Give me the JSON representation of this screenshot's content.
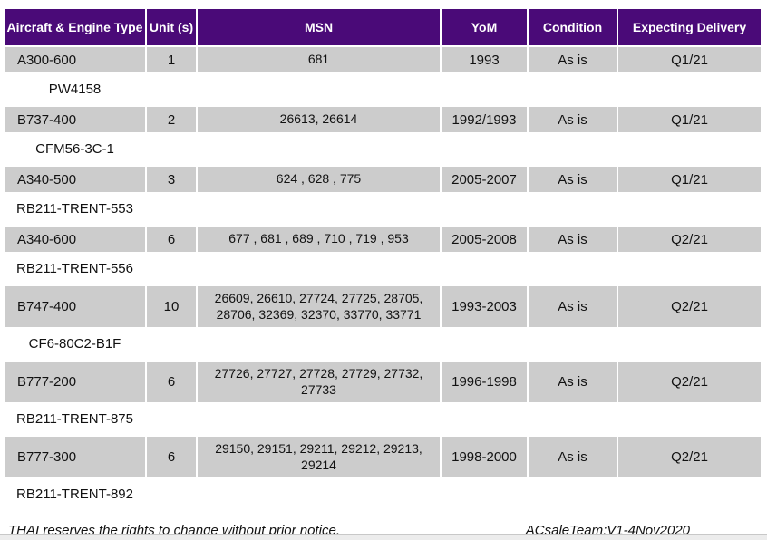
{
  "table": {
    "headers": [
      "Aircraft & Engine Type",
      "Unit (s)",
      "MSN",
      "YoM",
      "Condition",
      "Expecting Delivery"
    ],
    "rows": [
      {
        "aircraft": "A300-600",
        "units": "1",
        "msn": "681",
        "yom": "1993",
        "condition": "As is",
        "delivery": "Q1/21",
        "engine": "PW4158"
      },
      {
        "aircraft": "B737-400",
        "units": "2",
        "msn": "26613, 26614",
        "yom": "1992/1993",
        "condition": "As is",
        "delivery": "Q1/21",
        "engine": "CFM56-3C-1"
      },
      {
        "aircraft": "A340-500",
        "units": "3",
        "msn": "624 , 628 , 775",
        "yom": "2005-2007",
        "condition": "As is",
        "delivery": "Q1/21",
        "engine": "RB211-TRENT-553"
      },
      {
        "aircraft": "A340-600",
        "units": "6",
        "msn": "677 , 681 , 689 , 710 , 719 , 953",
        "yom": "2005-2008",
        "condition": "As is",
        "delivery": "Q2/21",
        "engine": "RB211-TRENT-556"
      },
      {
        "aircraft": "B747-400",
        "units": "10",
        "msn": "26609, 26610, 27724, 27725, 28705, 28706, 32369, 32370, 33770, 33771",
        "yom": "1993-2003",
        "condition": "As is",
        "delivery": "Q2/21",
        "engine": "CF6-80C2-B1F"
      },
      {
        "aircraft": "B777-200",
        "units": "6",
        "msn": "27726, 27727, 27728, 27729, 27732, 27733",
        "yom": "1996-1998",
        "condition": "As is",
        "delivery": "Q2/21",
        "engine": "RB211-TRENT-875"
      },
      {
        "aircraft": "B777-300",
        "units": "6",
        "msn": "29150, 29151, 29211, 29212, 29213, 29214",
        "yom": "1998-2000",
        "condition": "As is",
        "delivery": "Q2/21",
        "engine": "RB211-TRENT-892"
      }
    ]
  },
  "footer": {
    "disclaimer": "THAI reserves the rights to change without prior notice.",
    "version": "ACsaleTeam:V1-4Nov2020"
  },
  "colors": {
    "header_bg": "#4A0A78",
    "header_text": "#FFFFFF",
    "row_bg": "#CCCCCC",
    "body_text": "#111111"
  }
}
